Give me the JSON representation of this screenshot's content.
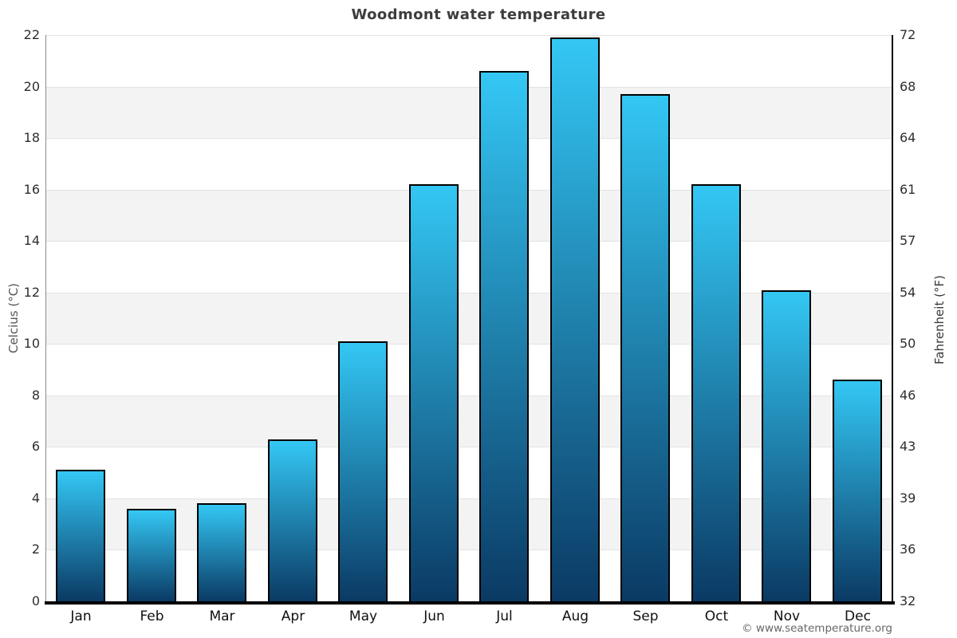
{
  "title": "Woodmont water temperature",
  "footer": "© www.seatemperature.org",
  "axes": {
    "left_label": "Celcius (°C)",
    "right_label": "Fahrenheit (°F)"
  },
  "chart_data": {
    "type": "bar",
    "title": "Woodmont water temperature",
    "categories": [
      "Jan",
      "Feb",
      "Mar",
      "Apr",
      "May",
      "Jun",
      "Jul",
      "Aug",
      "Sep",
      "Oct",
      "Nov",
      "Dec"
    ],
    "series": [
      {
        "name": "Water temperature",
        "unit": "°C",
        "values": [
          5.1,
          3.6,
          3.8,
          6.3,
          10.1,
          16.2,
          20.6,
          21.9,
          19.7,
          16.2,
          12.1,
          8.6
        ]
      }
    ],
    "xlabel": "",
    "ylabel_left": "Celcius (°C)",
    "ylabel_right": "Fahrenheit (°F)",
    "ylim_celsius": [
      0,
      22
    ],
    "y_ticks_celsius": [
      0,
      2,
      4,
      6,
      8,
      10,
      12,
      14,
      16,
      18,
      20,
      22
    ],
    "y_ticks_fahrenheit": [
      "32",
      "36",
      "39",
      "43",
      "46",
      "50",
      "54",
      "57",
      "61",
      "64",
      "68",
      "72"
    ],
    "grid": "horizontal alternating bands, legend none",
    "legend": "none",
    "colors": {
      "bar_gradient_top": "#34c7f4",
      "bar_gradient_bottom": "#0a3a64",
      "bar_border": "#000000",
      "band_fill": "#f3f3f3",
      "gridline": "#e2e2e2",
      "title_text": "#3d3d3d",
      "tick_text": "#2e2e2e"
    }
  }
}
